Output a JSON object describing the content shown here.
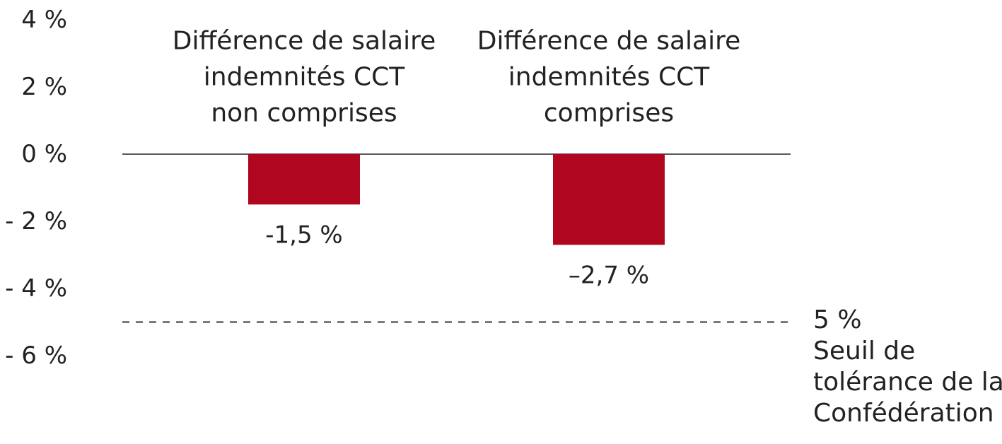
{
  "chart_data": {
    "type": "bar",
    "categories": [
      [
        "Différence de salaire",
        "indemnités CCT",
        "non comprises"
      ],
      [
        "Différence de salaire",
        "indemnités CCT",
        "comprises"
      ]
    ],
    "values": [
      -1.5,
      -2.7
    ],
    "value_labels": [
      "-1,5 %",
      "–2,7 %"
    ],
    "ylim": [
      -6,
      4
    ],
    "yticks": [
      4,
      2,
      0,
      -2,
      -4,
      -6
    ],
    "ytick_labels": [
      "4 %",
      "2 %",
      "0 %",
      "- 2 %",
      "- 4 %",
      "- 6 %"
    ],
    "bar_color": "#b0061f",
    "baseline_color": "#222222",
    "threshold": {
      "value": -5,
      "style": "dashed",
      "label_lines": [
        "5 %",
        "Seuil de",
        "tolérance de la",
        "Confédération"
      ]
    },
    "grid": false,
    "legend": "none",
    "title": "",
    "xlabel": "",
    "ylabel": ""
  }
}
